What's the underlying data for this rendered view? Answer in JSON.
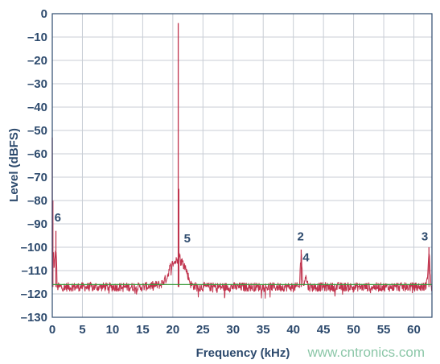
{
  "chart_data": {
    "type": "line",
    "title": "",
    "xlabel": "Frequency (kHz)",
    "ylabel": "Level (dBFS)",
    "xlim": [
      0,
      63
    ],
    "ylim": [
      -130,
      0
    ],
    "xticks": [
      0,
      5,
      10,
      15,
      20,
      25,
      30,
      35,
      40,
      45,
      50,
      55,
      60
    ],
    "yticks": [
      0,
      -10,
      -20,
      -30,
      -40,
      -50,
      -60,
      -70,
      -80,
      -90,
      -100,
      -110,
      -120,
      -130
    ],
    "grid": true,
    "colors": {
      "spectrum": "#c0334d",
      "noise_floor_reference": "#3a9a3a",
      "grid": "#c8cdd5",
      "text": "#2d4a6d"
    },
    "series": [
      {
        "color": "#c0334d",
        "noise_floor": -117,
        "x": [
          0,
          0.1,
          0.3,
          0.6,
          0.8,
          1.0,
          2,
          5,
          10,
          15,
          18,
          19,
          19.5,
          20,
          20.5,
          20.8,
          20.9,
          21.0,
          21.2,
          21.5,
          22.0,
          22.5,
          23.0,
          24,
          30,
          35,
          40,
          41.0,
          41.3,
          41.6,
          42.0,
          42.5,
          43,
          50,
          55,
          60,
          61.8,
          62.2,
          62.5,
          62.8,
          63
        ],
        "y": [
          -53,
          -80,
          -112,
          -93,
          -117,
          -117,
          -117,
          -117,
          -117,
          -117,
          -116,
          -113,
          -109,
          -107,
          -106,
          -105,
          -4,
          -75,
          -106,
          -106,
          -108,
          -112,
          -116,
          -117,
          -117,
          -117,
          -117,
          -117,
          -101,
          -117,
          -112,
          -117,
          -117,
          -117,
          -117,
          -117,
          -117,
          -115,
          -100,
          -115,
          -117
        ]
      },
      {
        "color": "#3a9a3a",
        "x": [
          0,
          63
        ],
        "y": [
          -116,
          -116
        ]
      }
    ],
    "annotations": [
      {
        "text": "6",
        "x": 0.9,
        "y": -89
      },
      {
        "text": "5",
        "x": 22.4,
        "y": -98
      },
      {
        "text": "2",
        "x": 41.2,
        "y": -97
      },
      {
        "text": "4",
        "x": 42.1,
        "y": -106
      },
      {
        "text": "3",
        "x": 61.8,
        "y": -97
      }
    ]
  },
  "watermark": "www.cntronics.com"
}
